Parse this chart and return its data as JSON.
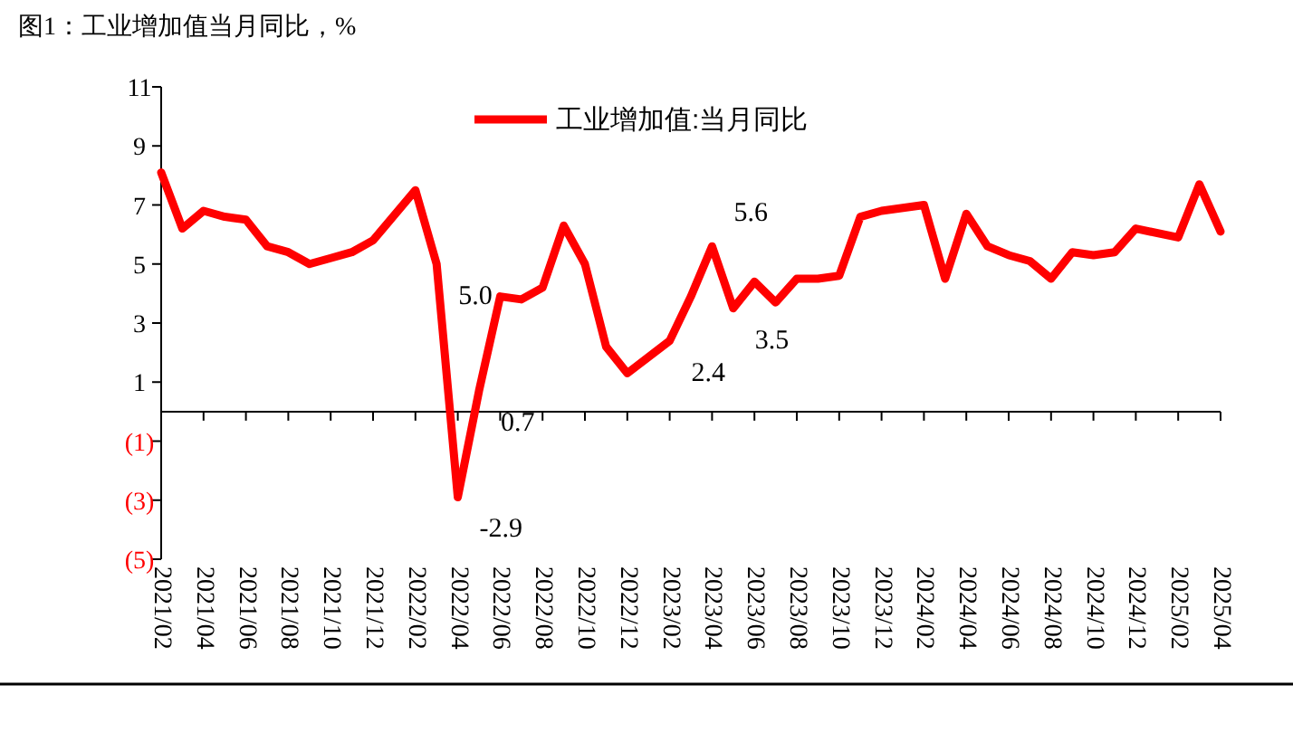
{
  "chart_data": {
    "type": "line",
    "title": "图1：工业增加值当月同比，%",
    "x": [
      "2021-02",
      "2021-03",
      "2021-04",
      "2021-05",
      "2021-06",
      "2021-07",
      "2021-08",
      "2021-09",
      "2021-10",
      "2021-11",
      "2021-12",
      "2022-02",
      "2022-03",
      "2022-04",
      "2022-05",
      "2022-06",
      "2022-07",
      "2022-08",
      "2022-09",
      "2022-10",
      "2022-11",
      "2022-12",
      "2023-02",
      "2023-03",
      "2023-04",
      "2023-05",
      "2023-06",
      "2023-07",
      "2023-08",
      "2023-09",
      "2023-10",
      "2023-11",
      "2023-12",
      "2024-02",
      "2024-03",
      "2024-04",
      "2024-05",
      "2024-06",
      "2024-07",
      "2024-08",
      "2024-09",
      "2024-10",
      "2024-11",
      "2024-12",
      "2025-02",
      "2025-03",
      "2025-04"
    ],
    "series": [
      {
        "name": "工业增加值:当月同比",
        "color": "#ff0000",
        "values": [
          8.1,
          6.2,
          6.8,
          6.6,
          6.5,
          5.6,
          5.4,
          5.0,
          5.2,
          5.4,
          5.8,
          7.5,
          5.0,
          -2.9,
          0.7,
          3.9,
          3.8,
          4.2,
          6.3,
          5.0,
          2.2,
          1.3,
          2.4,
          3.9,
          5.6,
          3.5,
          4.4,
          3.7,
          4.5,
          4.5,
          4.6,
          6.6,
          6.8,
          7.0,
          4.5,
          6.7,
          5.6,
          5.3,
          5.1,
          4.5,
          5.4,
          5.3,
          5.4,
          6.2,
          5.9,
          7.7,
          6.1
        ]
      }
    ],
    "xlim": [
      "2021-02",
      "2025-04"
    ],
    "xticks": [
      {
        "value": "2021-02",
        "label": "2021/02"
      },
      {
        "value": "2021-04",
        "label": "2021/04"
      },
      {
        "value": "2021-06",
        "label": "2021/06"
      },
      {
        "value": "2021-08",
        "label": "2021/08"
      },
      {
        "value": "2021-10",
        "label": "2021/10"
      },
      {
        "value": "2021-12",
        "label": "2021/12"
      },
      {
        "value": "2022-02",
        "label": "2022/02"
      },
      {
        "value": "2022-04",
        "label": "2022/04"
      },
      {
        "value": "2022-06",
        "label": "2022/06"
      },
      {
        "value": "2022-08",
        "label": "2022/08"
      },
      {
        "value": "2022-10",
        "label": "2022/10"
      },
      {
        "value": "2022-12",
        "label": "2022/12"
      },
      {
        "value": "2023-02",
        "label": "2023/02"
      },
      {
        "value": "2023-04",
        "label": "2023/04"
      },
      {
        "value": "2023-06",
        "label": "2023/06"
      },
      {
        "value": "2023-08",
        "label": "2023/08"
      },
      {
        "value": "2023-10",
        "label": "2023/10"
      },
      {
        "value": "2023-12",
        "label": "2023/12"
      },
      {
        "value": "2024-02",
        "label": "2024/02"
      },
      {
        "value": "2024-04",
        "label": "2024/04"
      },
      {
        "value": "2024-06",
        "label": "2024/06"
      },
      {
        "value": "2024-08",
        "label": "2024/08"
      },
      {
        "value": "2024-10",
        "label": "2024/10"
      },
      {
        "value": "2024-12",
        "label": "2024/12"
      },
      {
        "value": "2025-02",
        "label": "2025/02"
      },
      {
        "value": "2025-04",
        "label": "2025/04"
      }
    ],
    "ylim": [
      -5,
      11
    ],
    "yticks": [
      {
        "value": -5,
        "label": "(5)"
      },
      {
        "value": -3,
        "label": "(3)"
      },
      {
        "value": -1,
        "label": "(1)"
      },
      1,
      3,
      5,
      7,
      9,
      11
    ],
    "annotations": [
      {
        "text": "5.0",
        "x": "2022-03",
        "y": 5.0
      },
      {
        "text": "-2.9",
        "x": "2022-04",
        "y": -2.9
      },
      {
        "text": "0.7",
        "x": "2022-05",
        "y": 0.7
      },
      {
        "text": "2.4",
        "x": "2023-02",
        "y": 2.4
      },
      {
        "text": "5.6",
        "x": "2023-04",
        "y": 5.6
      },
      {
        "text": "3.5",
        "x": "2023-05",
        "y": 3.5
      }
    ],
    "legend": "top",
    "grid": false,
    "marker": "none",
    "line_style": "solid"
  }
}
